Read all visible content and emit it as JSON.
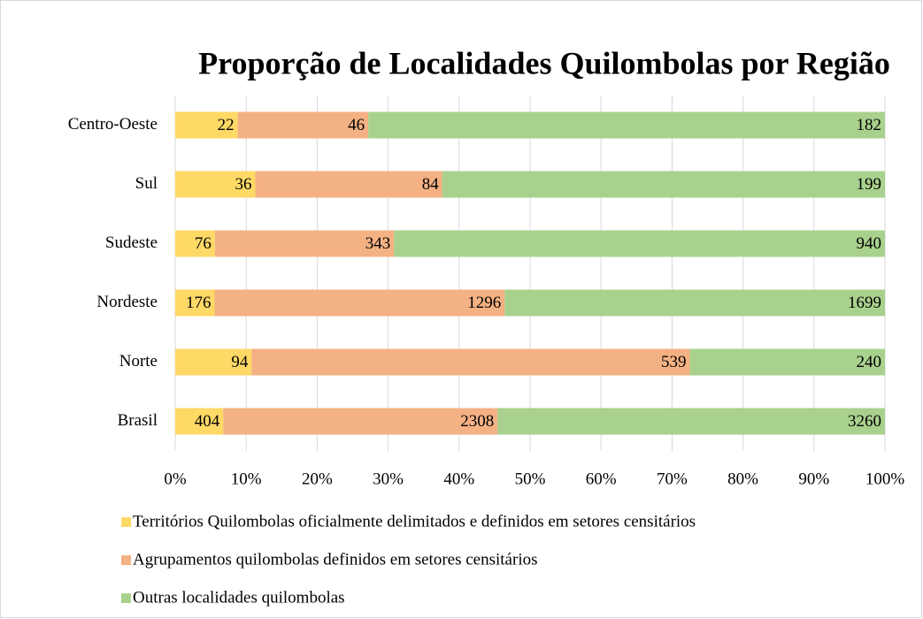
{
  "chart_data": {
    "type": "bar",
    "orientation": "horizontal",
    "stacked": "percent",
    "title": "Proporção de Localidades Quilombolas por Região",
    "categories": [
      "Centro-Oeste",
      "Sul",
      "Sudeste",
      "Nordeste",
      "Norte",
      "Brasil"
    ],
    "series": [
      {
        "name": "Territórios Quilombolas oficialmente delimitados e definidos em setores censitários",
        "color": "#ffd966",
        "values": [
          22,
          36,
          76,
          176,
          94,
          404
        ]
      },
      {
        "name": "Agrupamentos quilombolas definidos em setores censitários",
        "color": "#f4b183",
        "values": [
          46,
          84,
          343,
          1296,
          539,
          2308
        ]
      },
      {
        "name": "Outras localidades quilombolas",
        "color": "#a9d18e",
        "values": [
          182,
          199,
          940,
          1699,
          240,
          3260
        ]
      }
    ],
    "xlim": [
      0,
      100
    ],
    "xticks": [
      {
        "value": 0,
        "label": "0%"
      },
      {
        "value": 10,
        "label": "10%"
      },
      {
        "value": 20,
        "label": "20%"
      },
      {
        "value": 30,
        "label": "30%"
      },
      {
        "value": 40,
        "label": "40%"
      },
      {
        "value": 50,
        "label": "50%"
      },
      {
        "value": 60,
        "label": "60%"
      },
      {
        "value": 70,
        "label": "70%"
      },
      {
        "value": 80,
        "label": "80%"
      },
      {
        "value": 90,
        "label": "90%"
      },
      {
        "value": 100,
        "label": "100%"
      }
    ],
    "grid": true,
    "legend": "bottom"
  }
}
